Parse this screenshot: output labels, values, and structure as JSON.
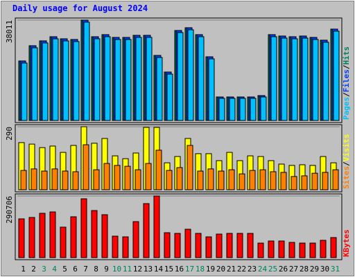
{
  "chart_data": [
    {
      "type": "bar",
      "title": "Daily usage for August 2024",
      "ylim": [
        0,
        38011
      ],
      "yticks": [
        38011
      ],
      "series": [
        {
          "name": "Hits",
          "color": "#00805c",
          "values": [
            22544,
            28311,
            30147,
            31719,
            30933,
            30671,
            38011,
            31719,
            32506,
            31457,
            31457,
            32244,
            32244,
            24641,
            18350,
            34078,
            35127,
            32506,
            24117,
            8913,
            8913,
            8913,
            8913,
            9437,
            32506,
            31981,
            31719,
            31981,
            31457,
            30409,
            34602
          ]
        },
        {
          "name": "Files",
          "color": "#0040ff",
          "values": [
            22544,
            28311,
            30147,
            31719,
            30933,
            30671,
            38011,
            31719,
            32506,
            31457,
            31457,
            32244,
            32244,
            24641,
            18350,
            34078,
            35127,
            32506,
            24117,
            8913,
            8913,
            8913,
            8913,
            9437,
            32506,
            31981,
            31719,
            31981,
            31457,
            30409,
            34602
          ]
        },
        {
          "name": "Pages",
          "color": "#00c0ff",
          "values": [
            21758,
            27525,
            29361,
            30933,
            30147,
            29885,
            37225,
            30933,
            31719,
            30671,
            30671,
            31457,
            31457,
            23855,
            17564,
            33292,
            34340,
            31719,
            23331,
            8389,
            8389,
            8389,
            8389,
            8913,
            31719,
            31195,
            30933,
            31195,
            30671,
            29623,
            33816
          ]
        }
      ]
    },
    {
      "type": "bar",
      "ylim": [
        0,
        290
      ],
      "yticks": [
        290
      ],
      "series": [
        {
          "name": "Visits",
          "color": "#ffff00",
          "values": [
            217,
            210,
            194,
            201,
            172,
            204,
            290,
            214,
            236,
            156,
            143,
            169,
            287,
            287,
            124,
            153,
            236,
            166,
            166,
            134,
            172,
            134,
            156,
            153,
            134,
            118,
            112,
            115,
            112,
            153,
            124
          ]
        },
        {
          "name": "Sites",
          "color": "#ff8000",
          "values": [
            89,
            96,
            86,
            96,
            86,
            83,
            207,
            92,
            121,
            112,
            108,
            92,
            121,
            182,
            89,
            102,
            204,
            86,
            96,
            86,
            92,
            73,
            89,
            92,
            83,
            80,
            61,
            64,
            76,
            80,
            92
          ]
        }
      ]
    },
    {
      "type": "bar",
      "ylim": [
        0,
        290706
      ],
      "yticks": [
        290706
      ],
      "categories": [
        "1",
        "2",
        "3",
        "4",
        "5",
        "6",
        "7",
        "8",
        "9",
        "10",
        "11",
        "12",
        "13",
        "14",
        "15",
        "16",
        "17",
        "18",
        "19",
        "20",
        "21",
        "22",
        "23",
        "24",
        "25",
        "26",
        "27",
        "28",
        "29",
        "30",
        "31"
      ],
      "category_colors": [
        "#000000",
        "#000000",
        "#00805c",
        "#00805c",
        "#000000",
        "#000000",
        "#000000",
        "#000000",
        "#000000",
        "#00805c",
        "#00805c",
        "#000000",
        "#000000",
        "#000000",
        "#000000",
        "#000000",
        "#00805c",
        "#00805c",
        "#000000",
        "#000000",
        "#000000",
        "#000000",
        "#000000",
        "#00805c",
        "#00805c",
        "#000000",
        "#000000",
        "#000000",
        "#000000",
        "#000000",
        "#00805c"
      ],
      "series": [
        {
          "name": "KBytes",
          "color": "#ff0000",
          "values": [
            182915,
            189449,
            209047,
            215580,
            143720,
            192715,
            277640,
            222113,
            202513,
            101257,
            97991,
            169850,
            254776,
            290706,
            117588,
            114322,
            133920,
            114322,
            97991,
            111056,
            114322,
            114322,
            114322,
            68594,
            78393,
            78393,
            71860,
            68594,
            68594,
            81660,
            94724
          ]
        }
      ]
    }
  ]
}
